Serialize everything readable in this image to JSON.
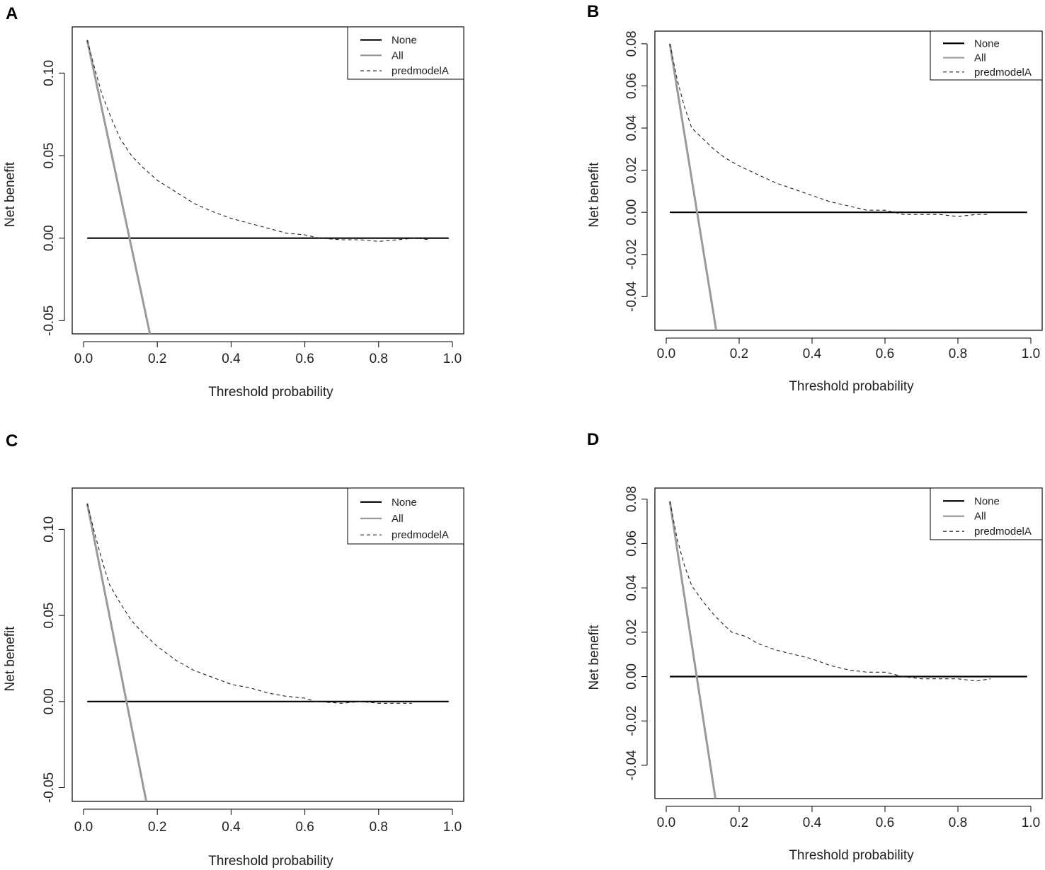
{
  "figure": {
    "colors": {
      "none": "#000000",
      "all": "#9a9a9a",
      "model": "#222222",
      "frame": "#000000"
    }
  },
  "chart_data": [
    {
      "panel": "A",
      "type": "line",
      "xlabel": "Threshold probability",
      "ylabel": "Net benefit",
      "xlim": [
        0.0,
        1.0
      ],
      "ylim": [
        -0.058,
        0.128
      ],
      "xticks": [
        0.0,
        0.2,
        0.4,
        0.6,
        0.8,
        1.0
      ],
      "xtick_labels": [
        "0.0",
        "0.2",
        "0.4",
        "0.6",
        "0.8",
        "1.0"
      ],
      "yticks": [
        -0.05,
        0.0,
        0.05,
        0.1
      ],
      "ytick_labels": [
        "-0.05",
        "0.00",
        "0.05",
        "0.10"
      ],
      "legend": [
        "None",
        "All",
        "predmodelA"
      ],
      "legend_position": "top-right",
      "series": [
        {
          "name": "None",
          "style": "solid-black",
          "x": [
            0.01,
            0.99
          ],
          "y": [
            0.0,
            0.0
          ]
        },
        {
          "name": "All",
          "style": "solid-gray",
          "x": [
            0.01,
            0.18
          ],
          "y": [
            0.12,
            -0.058
          ]
        },
        {
          "name": "predmodelA",
          "style": "dashed",
          "x": [
            0.01,
            0.03,
            0.05,
            0.08,
            0.1,
            0.13,
            0.16,
            0.2,
            0.25,
            0.3,
            0.35,
            0.4,
            0.45,
            0.5,
            0.55,
            0.6,
            0.64,
            0.7,
            0.75,
            0.8,
            0.85,
            0.9,
            0.94
          ],
          "y": [
            0.12,
            0.103,
            0.087,
            0.07,
            0.06,
            0.05,
            0.043,
            0.035,
            0.028,
            0.021,
            0.016,
            0.012,
            0.009,
            0.006,
            0.003,
            0.002,
            0.0,
            -0.001,
            -0.001,
            -0.002,
            -0.001,
            0.0,
            -0.001
          ]
        }
      ]
    },
    {
      "panel": "B",
      "type": "line",
      "xlabel": "Threshold probability",
      "ylabel": "Net benefit",
      "xlim": [
        0.0,
        1.0
      ],
      "ylim": [
        -0.056,
        0.086
      ],
      "xticks": [
        0.0,
        0.2,
        0.4,
        0.6,
        0.8,
        1.0
      ],
      "xtick_labels": [
        "0.0",
        "0.2",
        "0.4",
        "0.6",
        "0.8",
        "1.0"
      ],
      "yticks": [
        -0.04,
        -0.02,
        0.0,
        0.02,
        0.04,
        0.06,
        0.08
      ],
      "ytick_labels": [
        "-0.04",
        "-0.02",
        "0.00",
        "0.02",
        "0.04",
        "0.06",
        "0.08"
      ],
      "legend": [
        "None",
        "All",
        "predmodelA"
      ],
      "legend_position": "top-right",
      "series": [
        {
          "name": "None",
          "style": "solid-black",
          "x": [
            0.01,
            0.99
          ],
          "y": [
            0.0,
            0.0
          ]
        },
        {
          "name": "All",
          "style": "solid-gray",
          "x": [
            0.01,
            0.137
          ],
          "y": [
            0.08,
            -0.056
          ]
        },
        {
          "name": "predmodelA",
          "style": "dashed",
          "x": [
            0.01,
            0.03,
            0.05,
            0.07,
            0.1,
            0.13,
            0.16,
            0.2,
            0.25,
            0.3,
            0.35,
            0.4,
            0.45,
            0.5,
            0.55,
            0.6,
            0.65,
            0.7,
            0.75,
            0.8,
            0.85,
            0.88
          ],
          "y": [
            0.08,
            0.063,
            0.05,
            0.04,
            0.035,
            0.03,
            0.026,
            0.022,
            0.018,
            0.014,
            0.011,
            0.008,
            0.005,
            0.003,
            0.001,
            0.001,
            -0.001,
            -0.001,
            -0.001,
            -0.002,
            -0.001,
            -0.001
          ]
        }
      ]
    },
    {
      "panel": "C",
      "type": "line",
      "xlabel": "Threshold probability",
      "ylabel": "Net benefit",
      "xlim": [
        0.0,
        1.0
      ],
      "ylim": [
        -0.058,
        0.124
      ],
      "xticks": [
        0.0,
        0.2,
        0.4,
        0.6,
        0.8,
        1.0
      ],
      "xtick_labels": [
        "0.0",
        "0.2",
        "0.4",
        "0.6",
        "0.8",
        "1.0"
      ],
      "yticks": [
        -0.05,
        0.0,
        0.05,
        0.1
      ],
      "ytick_labels": [
        "-0.05",
        "0.00",
        "0.05",
        "0.10"
      ],
      "legend": [
        "None",
        "All",
        "predmodelA"
      ],
      "legend_position": "top-right",
      "series": [
        {
          "name": "None",
          "style": "solid-black",
          "x": [
            0.01,
            0.99
          ],
          "y": [
            0.0,
            0.0
          ]
        },
        {
          "name": "All",
          "style": "solid-gray",
          "x": [
            0.01,
            0.17
          ],
          "y": [
            0.115,
            -0.058
          ]
        },
        {
          "name": "predmodelA",
          "style": "dashed",
          "x": [
            0.01,
            0.03,
            0.05,
            0.07,
            0.1,
            0.13,
            0.16,
            0.2,
            0.25,
            0.3,
            0.35,
            0.4,
            0.45,
            0.5,
            0.55,
            0.6,
            0.63,
            0.7,
            0.75,
            0.8,
            0.85,
            0.89
          ],
          "y": [
            0.115,
            0.098,
            0.082,
            0.068,
            0.057,
            0.047,
            0.04,
            0.032,
            0.024,
            0.018,
            0.014,
            0.01,
            0.008,
            0.005,
            0.003,
            0.002,
            0.0,
            -0.001,
            0.0,
            -0.001,
            -0.001,
            -0.001
          ]
        }
      ]
    },
    {
      "panel": "D",
      "type": "line",
      "xlabel": "Threshold probability",
      "ylabel": "Net benefit",
      "xlim": [
        0.0,
        1.0
      ],
      "ylim": [
        -0.055,
        0.085
      ],
      "xticks": [
        0.0,
        0.2,
        0.4,
        0.6,
        0.8,
        1.0
      ],
      "xtick_labels": [
        "0.0",
        "0.2",
        "0.4",
        "0.6",
        "0.8",
        "1.0"
      ],
      "yticks": [
        -0.04,
        -0.02,
        0.0,
        0.02,
        0.04,
        0.06,
        0.08
      ],
      "ytick_labels": [
        "-0.04",
        "-0.02",
        "0.00",
        "0.02",
        "0.04",
        "0.06",
        "0.08"
      ],
      "legend": [
        "None",
        "All",
        "predmodelA"
      ],
      "legend_position": "top-right",
      "series": [
        {
          "name": "None",
          "style": "solid-black",
          "x": [
            0.01,
            0.99
          ],
          "y": [
            0.0,
            0.0
          ]
        },
        {
          "name": "All",
          "style": "solid-gray",
          "x": [
            0.01,
            0.135
          ],
          "y": [
            0.079,
            -0.055
          ]
        },
        {
          "name": "predmodelA",
          "style": "dashed",
          "x": [
            0.01,
            0.03,
            0.05,
            0.07,
            0.1,
            0.13,
            0.16,
            0.18,
            0.22,
            0.25,
            0.3,
            0.35,
            0.4,
            0.45,
            0.5,
            0.55,
            0.6,
            0.65,
            0.7,
            0.75,
            0.8,
            0.85,
            0.89
          ],
          "y": [
            0.079,
            0.062,
            0.05,
            0.041,
            0.034,
            0.028,
            0.023,
            0.02,
            0.018,
            0.015,
            0.012,
            0.01,
            0.008,
            0.005,
            0.003,
            0.002,
            0.002,
            0.0,
            -0.001,
            -0.001,
            -0.001,
            -0.002,
            -0.001
          ]
        }
      ]
    }
  ]
}
